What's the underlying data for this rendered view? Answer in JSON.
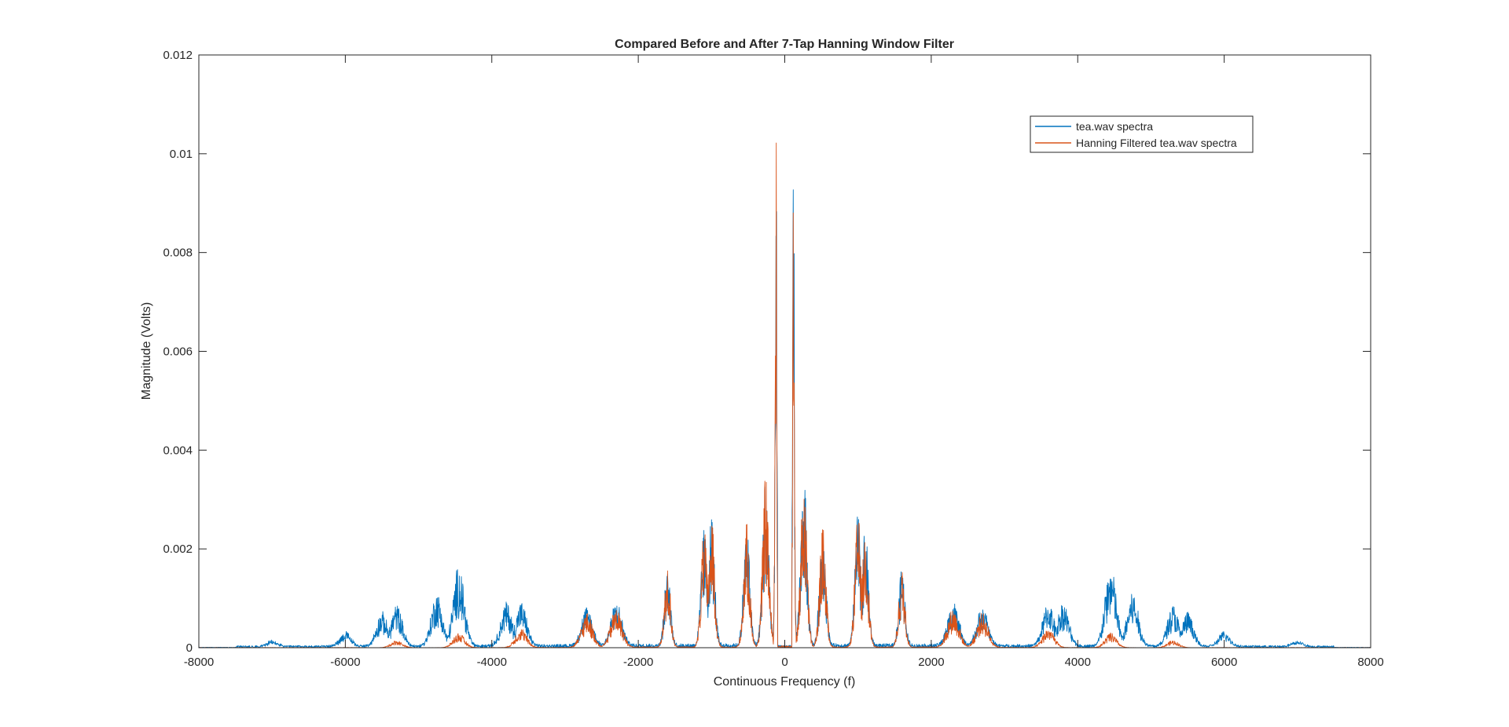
{
  "chart_data": {
    "type": "line",
    "title": "Compared Before and After 7-Tap Hanning Window Filter",
    "xlabel": "Continuous Frequency (f)",
    "ylabel": "Magnitude (Volts)",
    "xlim": [
      -8000,
      8000
    ],
    "ylim": [
      0,
      0.012
    ],
    "xticks": [
      -8000,
      -6000,
      -4000,
      -2000,
      0,
      2000,
      4000,
      6000,
      8000
    ],
    "xtick_labels": [
      "-8000",
      "-6000",
      "-4000",
      "-2000",
      "0",
      "2000",
      "4000",
      "6000",
      "8000"
    ],
    "yticks": [
      0,
      0.002,
      0.004,
      0.006,
      0.008,
      0.01,
      0.012
    ],
    "ytick_labels": [
      "0",
      "0.002",
      "0.004",
      "0.006",
      "0.008",
      "0.01",
      "0.012"
    ],
    "grid": false,
    "legend_position": "top-right",
    "series": [
      {
        "name": "tea.wav spectra",
        "color": "#0072BD",
        "peaks": [
          {
            "f": 120,
            "v": 0.011
          },
          {
            "f": 260,
            "v": 0.0035
          },
          {
            "f": 520,
            "v": 0.0025
          },
          {
            "f": 1000,
            "v": 0.0027
          },
          {
            "f": 1100,
            "v": 0.0024
          },
          {
            "f": 1600,
            "v": 0.0016
          },
          {
            "f": 2300,
            "v": 0.0009
          },
          {
            "f": 2700,
            "v": 0.0008
          },
          {
            "f": 3600,
            "v": 0.0009
          },
          {
            "f": 3800,
            "v": 0.0009
          },
          {
            "f": 4450,
            "v": 0.00165
          },
          {
            "f": 4750,
            "v": 0.0011
          },
          {
            "f": 5300,
            "v": 0.00085
          },
          {
            "f": 5500,
            "v": 0.0007
          },
          {
            "f": 6000,
            "v": 0.0003
          },
          {
            "f": 7000,
            "v": 0.00012
          }
        ]
      },
      {
        "name": "Hanning Filtered tea.wav spectra",
        "color": "#D95319",
        "peaks": [
          {
            "f": 120,
            "v": 0.011
          },
          {
            "f": 260,
            "v": 0.0035
          },
          {
            "f": 520,
            "v": 0.0025
          },
          {
            "f": 1000,
            "v": 0.0027
          },
          {
            "f": 1100,
            "v": 0.0024
          },
          {
            "f": 1600,
            "v": 0.0016
          },
          {
            "f": 2300,
            "v": 0.0008
          },
          {
            "f": 2700,
            "v": 0.0007
          },
          {
            "f": 3600,
            "v": 0.0004
          },
          {
            "f": 4450,
            "v": 0.0003
          },
          {
            "f": 5300,
            "v": 0.00015
          }
        ]
      }
    ]
  }
}
